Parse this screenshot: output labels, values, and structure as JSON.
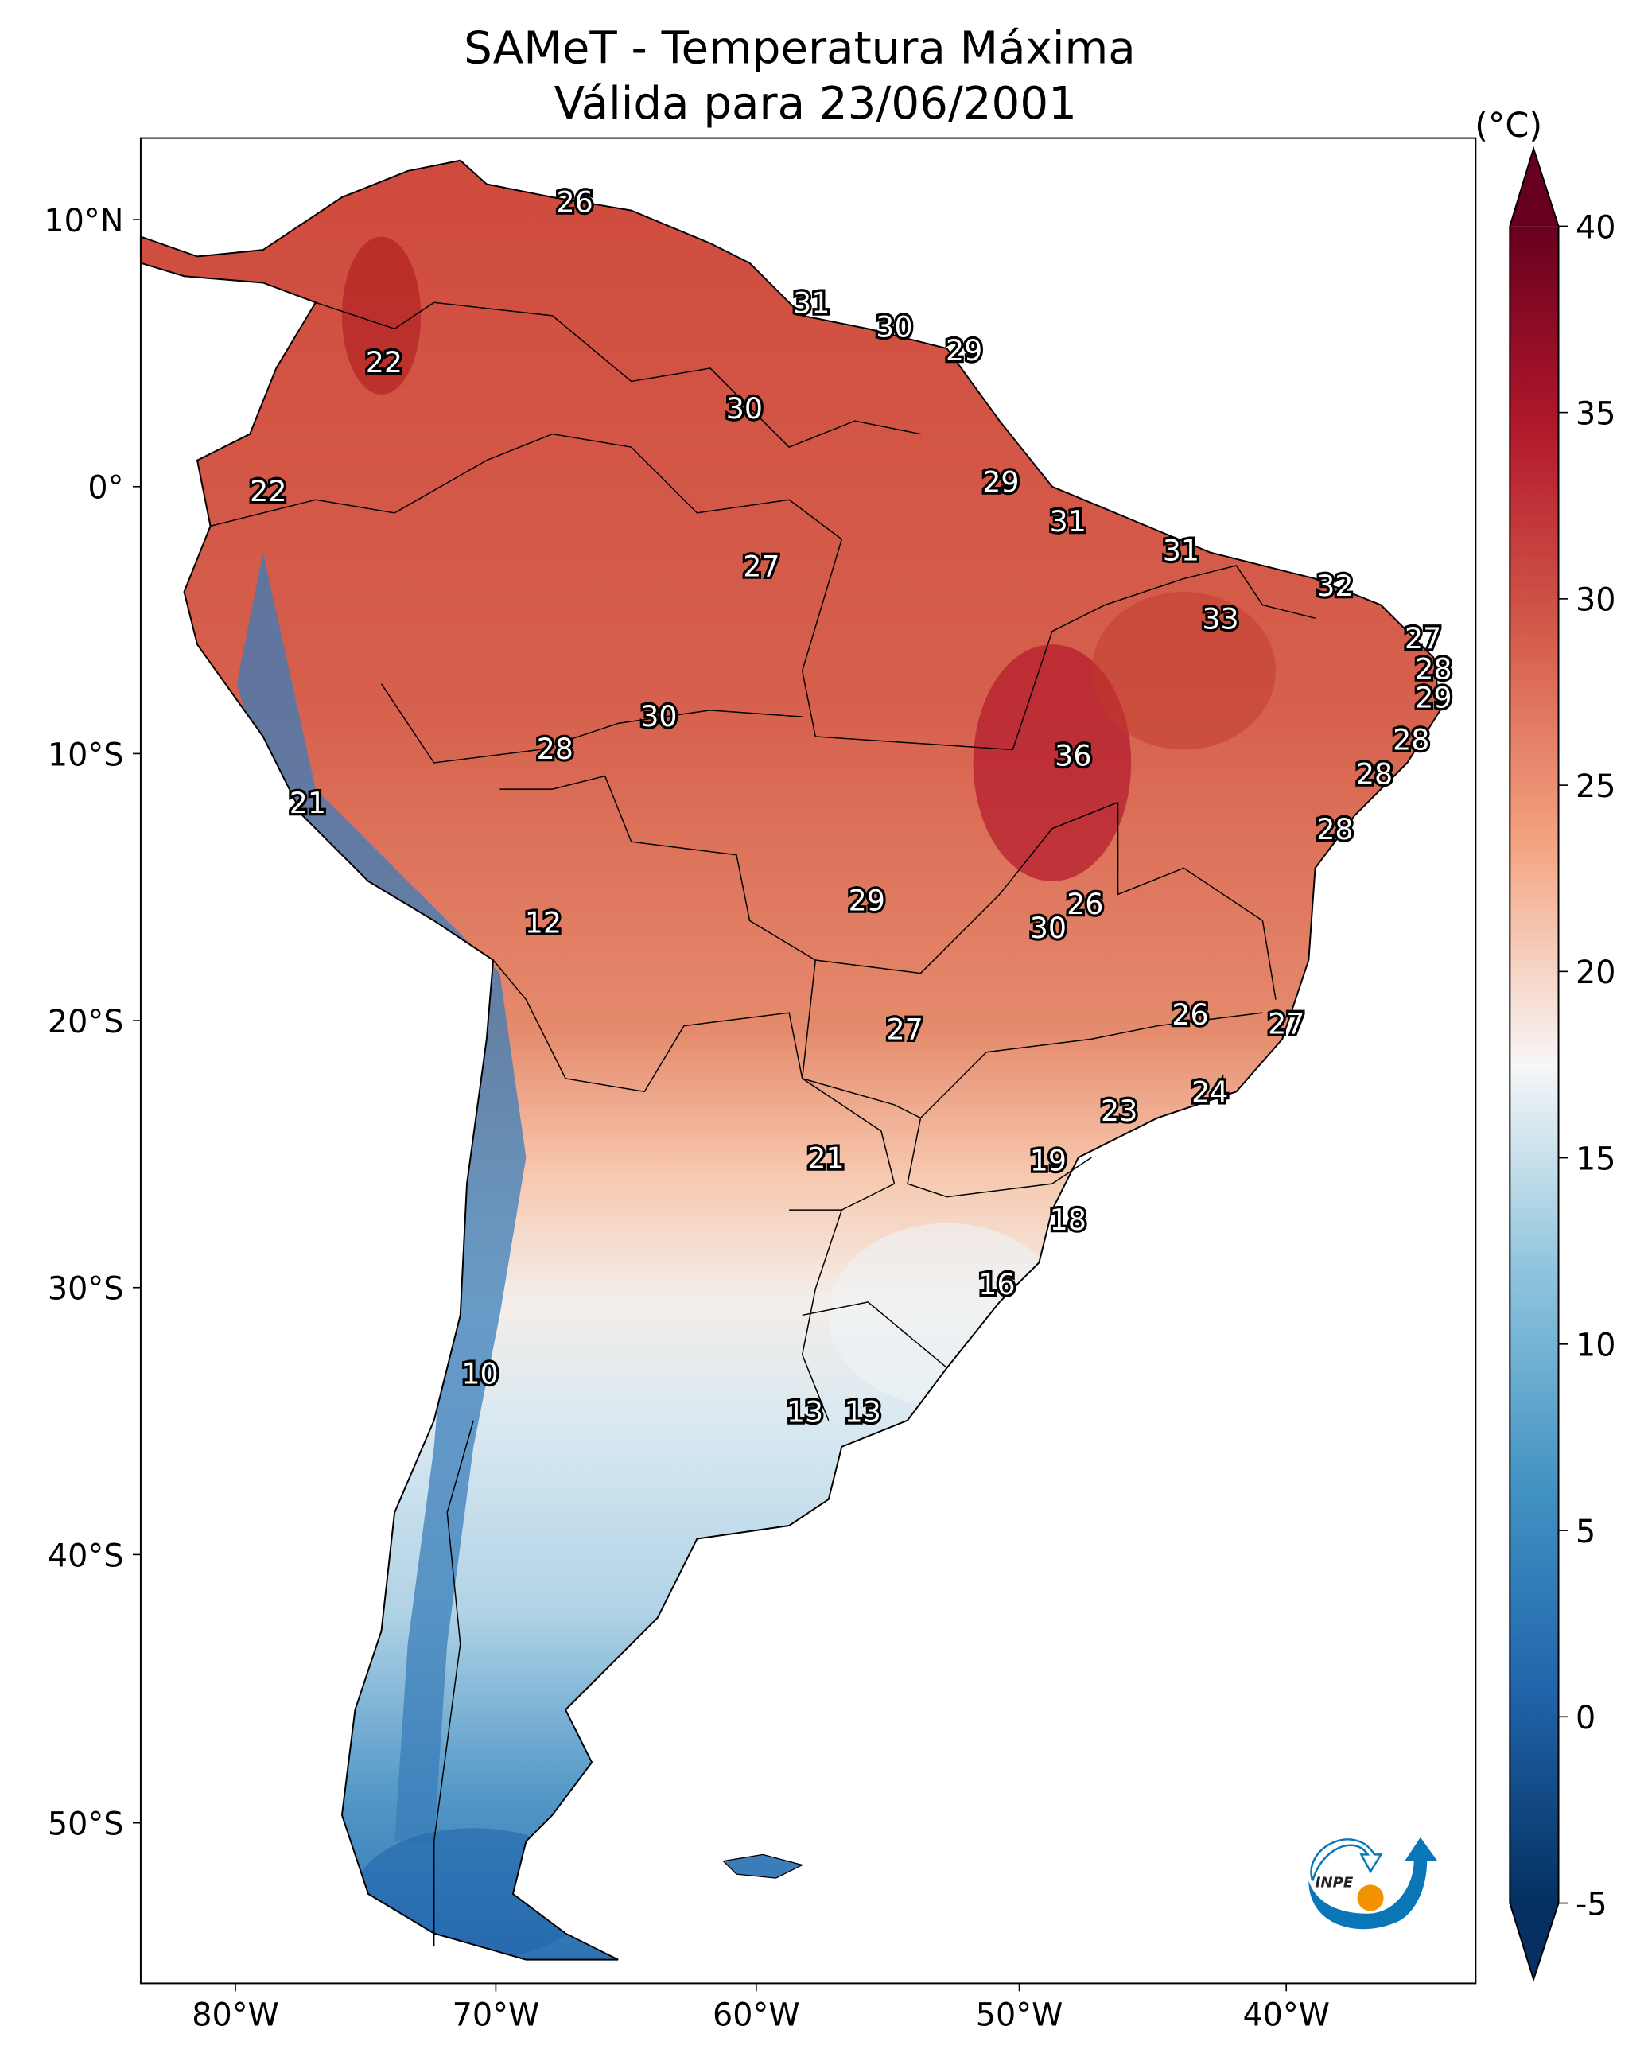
{
  "title": {
    "line1": "SAMeT - Temperatura Máxima",
    "line2": "Válida para 23/06/2001"
  },
  "colorbar": {
    "unit": "(°C)",
    "min": -5,
    "max": 40,
    "ticks": [
      "40",
      "35",
      "30",
      "25",
      "20",
      "15",
      "10",
      "5",
      "0",
      "-5"
    ],
    "colormap": "RdBu_r",
    "extend": "both"
  },
  "axes": {
    "lon_ticks": [
      "80°W",
      "70°W",
      "60°W",
      "50°W",
      "40°W"
    ],
    "lat_ticks": [
      "10°N",
      "0°",
      "10°S",
      "20°S",
      "30°S",
      "40°S",
      "50°S"
    ]
  },
  "labels": [
    "26",
    "31",
    "30",
    "29",
    "22",
    "30",
    "29",
    "22",
    "31",
    "31",
    "27",
    "32",
    "33",
    "27",
    "28",
    "29",
    "30",
    "28",
    "28",
    "36",
    "28",
    "21",
    "28",
    "29",
    "26",
    "12",
    "30",
    "26",
    "27",
    "27",
    "24",
    "23",
    "21",
    "19",
    "18",
    "16",
    "10",
    "13",
    "13"
  ],
  "logo": {
    "text": "INPE",
    "blue": "#0a76b8",
    "orange": "#f39200"
  }
}
